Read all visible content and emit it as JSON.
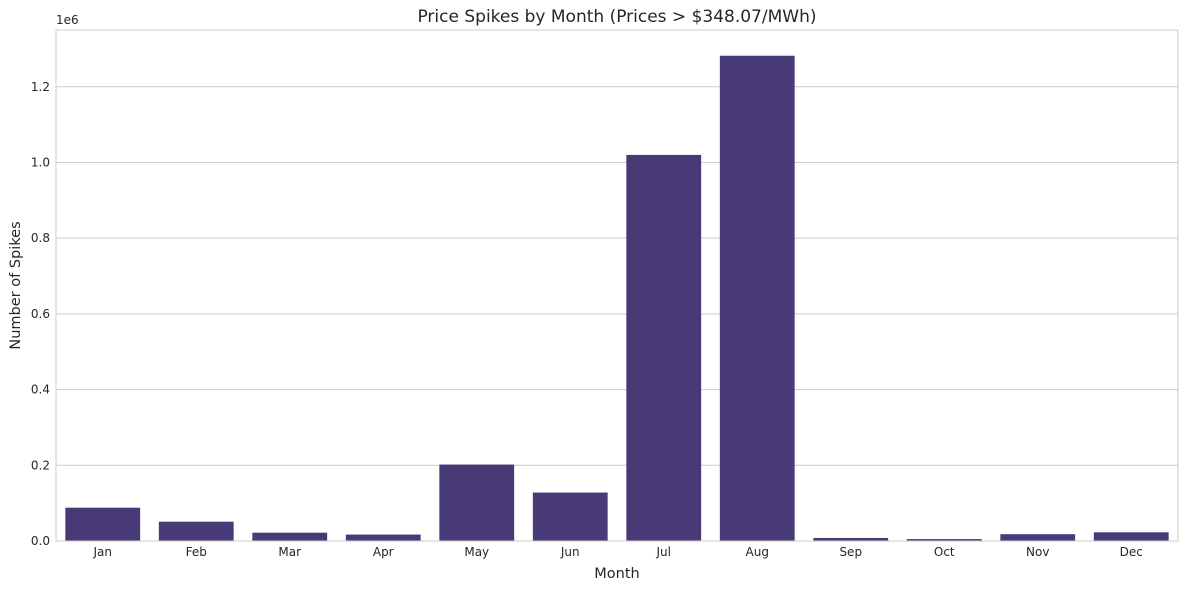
{
  "chart_data": {
    "type": "bar",
    "title": "Price Spikes by Month (Prices > $348.07/MWh)",
    "xlabel": "Month",
    "ylabel": "Number of Spikes",
    "y_offset_label": "1e6",
    "y_scale_factor": 1000000,
    "categories": [
      "Jan",
      "Feb",
      "Mar",
      "Apr",
      "May",
      "Jun",
      "Jul",
      "Aug",
      "Sep",
      "Oct",
      "Nov",
      "Dec"
    ],
    "values": [
      88000,
      51000,
      22000,
      17000,
      202000,
      128000,
      1020000,
      1282000,
      8000,
      5000,
      18000,
      23000
    ],
    "ylim": [
      0,
      1350000
    ],
    "yticks": [
      0,
      200000,
      400000,
      600000,
      800000,
      1000000,
      1200000
    ],
    "ytick_labels": [
      "0.0",
      "0.2",
      "0.4",
      "0.6",
      "0.8",
      "1.0",
      "1.2"
    ],
    "grid": true,
    "bar_color": "#483a76"
  }
}
